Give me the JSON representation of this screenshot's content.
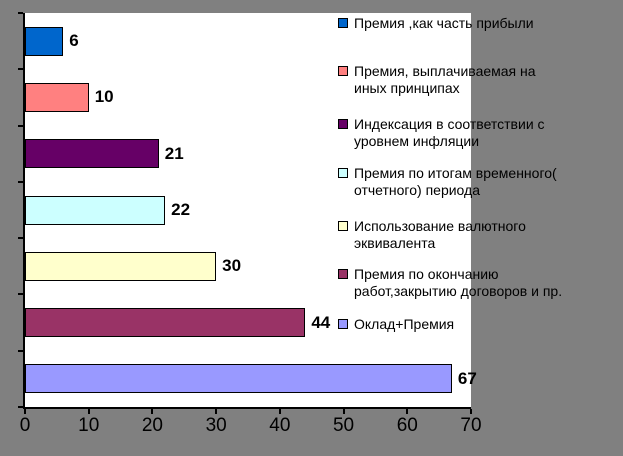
{
  "chart_data": {
    "type": "bar",
    "orientation": "horizontal",
    "title": "",
    "xlabel": "",
    "ylabel": "",
    "xlim": [
      0,
      70
    ],
    "x_ticks": [
      0,
      10,
      20,
      30,
      40,
      50,
      60,
      70
    ],
    "grid": false,
    "legend_position": "right",
    "background_color": "#808080",
    "plot_background_color": "#FFFFFF",
    "axis_color": "#000000",
    "categories": [
      "Премия ,как часть прибыли",
      "Премия, выплачиваемая на иных принципах",
      "Индексация в соответствии с уровнем инфляции",
      "Премия по итогам временного( отчетного) периода",
      "Использование валютного эквивалента",
      "Премия по окончанию работ,закрытию договоров и пр.",
      "Оклад+Премия"
    ],
    "values": [
      6,
      10,
      21,
      22,
      30,
      44,
      67
    ],
    "data_labels": [
      "6",
      "10",
      "21",
      "22",
      "30",
      "44",
      "67"
    ],
    "series": [
      {
        "name": "Премия ,как часть прибыли",
        "label_lines": [
          "Премия ,как часть прибыли"
        ],
        "value": 6,
        "color": "#0066CC"
      },
      {
        "name": "Премия, выплачиваемая на иных принципах",
        "label_lines": [
          "Премия, выплачиваемая на",
          "иных принципах"
        ],
        "value": 10,
        "color": "#FF8080"
      },
      {
        "name": "Индексация в соответствии с уровнем инфляции",
        "label_lines": [
          "Индексация в соответствии с",
          "уровнем инфляции"
        ],
        "value": 21,
        "color": "#660066"
      },
      {
        "name": "Премия по итогам временного( отчетного) периода",
        "label_lines": [
          "Премия по итогам временного(",
          "отчетного) периода"
        ],
        "value": 22,
        "color": "#CCFFFF"
      },
      {
        "name": "Использование валютного эквивалента",
        "label_lines": [
          "Использование валютного",
          "эквивалента"
        ],
        "value": 30,
        "color": "#FFFFCC"
      },
      {
        "name": "Премия по окончанию работ,закрытию договоров и пр.",
        "label_lines": [
          "Премия по окончанию",
          "работ,закрытию договоров и пр."
        ],
        "value": 44,
        "color": "#993366"
      },
      {
        "name": "Оклад+Премия",
        "label_lines": [
          "Оклад+Премия"
        ],
        "value": 67,
        "color": "#9999FF"
      }
    ]
  }
}
